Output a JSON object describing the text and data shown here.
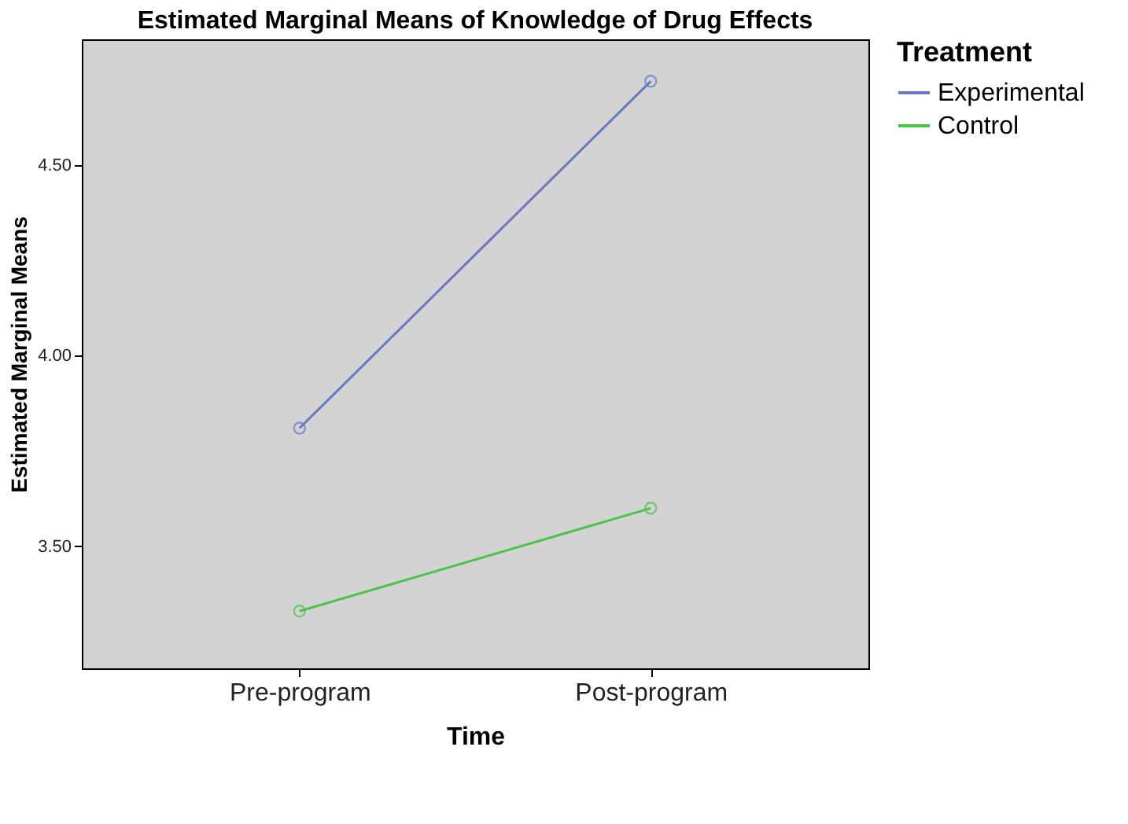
{
  "chart_data": {
    "type": "line",
    "title": "Estimated Marginal Means of Knowledge of Drug Effects",
    "xlabel": "Time",
    "ylabel": "Estimated Marginal Means",
    "legend_title": "Treatment",
    "categories": [
      "Pre-program",
      "Post-program"
    ],
    "series": [
      {
        "name": "Experimental",
        "color": "#6a78c4",
        "values": [
          3.81,
          4.72
        ]
      },
      {
        "name": "Control",
        "color": "#48c448",
        "values": [
          3.33,
          3.6
        ]
      }
    ],
    "ylim": [
      3.18,
      4.83
    ],
    "yticks": [
      {
        "value": 3.5,
        "label": "3.50"
      },
      {
        "value": 4.0,
        "label": "4.00"
      },
      {
        "value": 4.5,
        "label": "4.50"
      }
    ],
    "grid": false,
    "legend": "top right",
    "marker": "circle",
    "line_style": "solid"
  }
}
